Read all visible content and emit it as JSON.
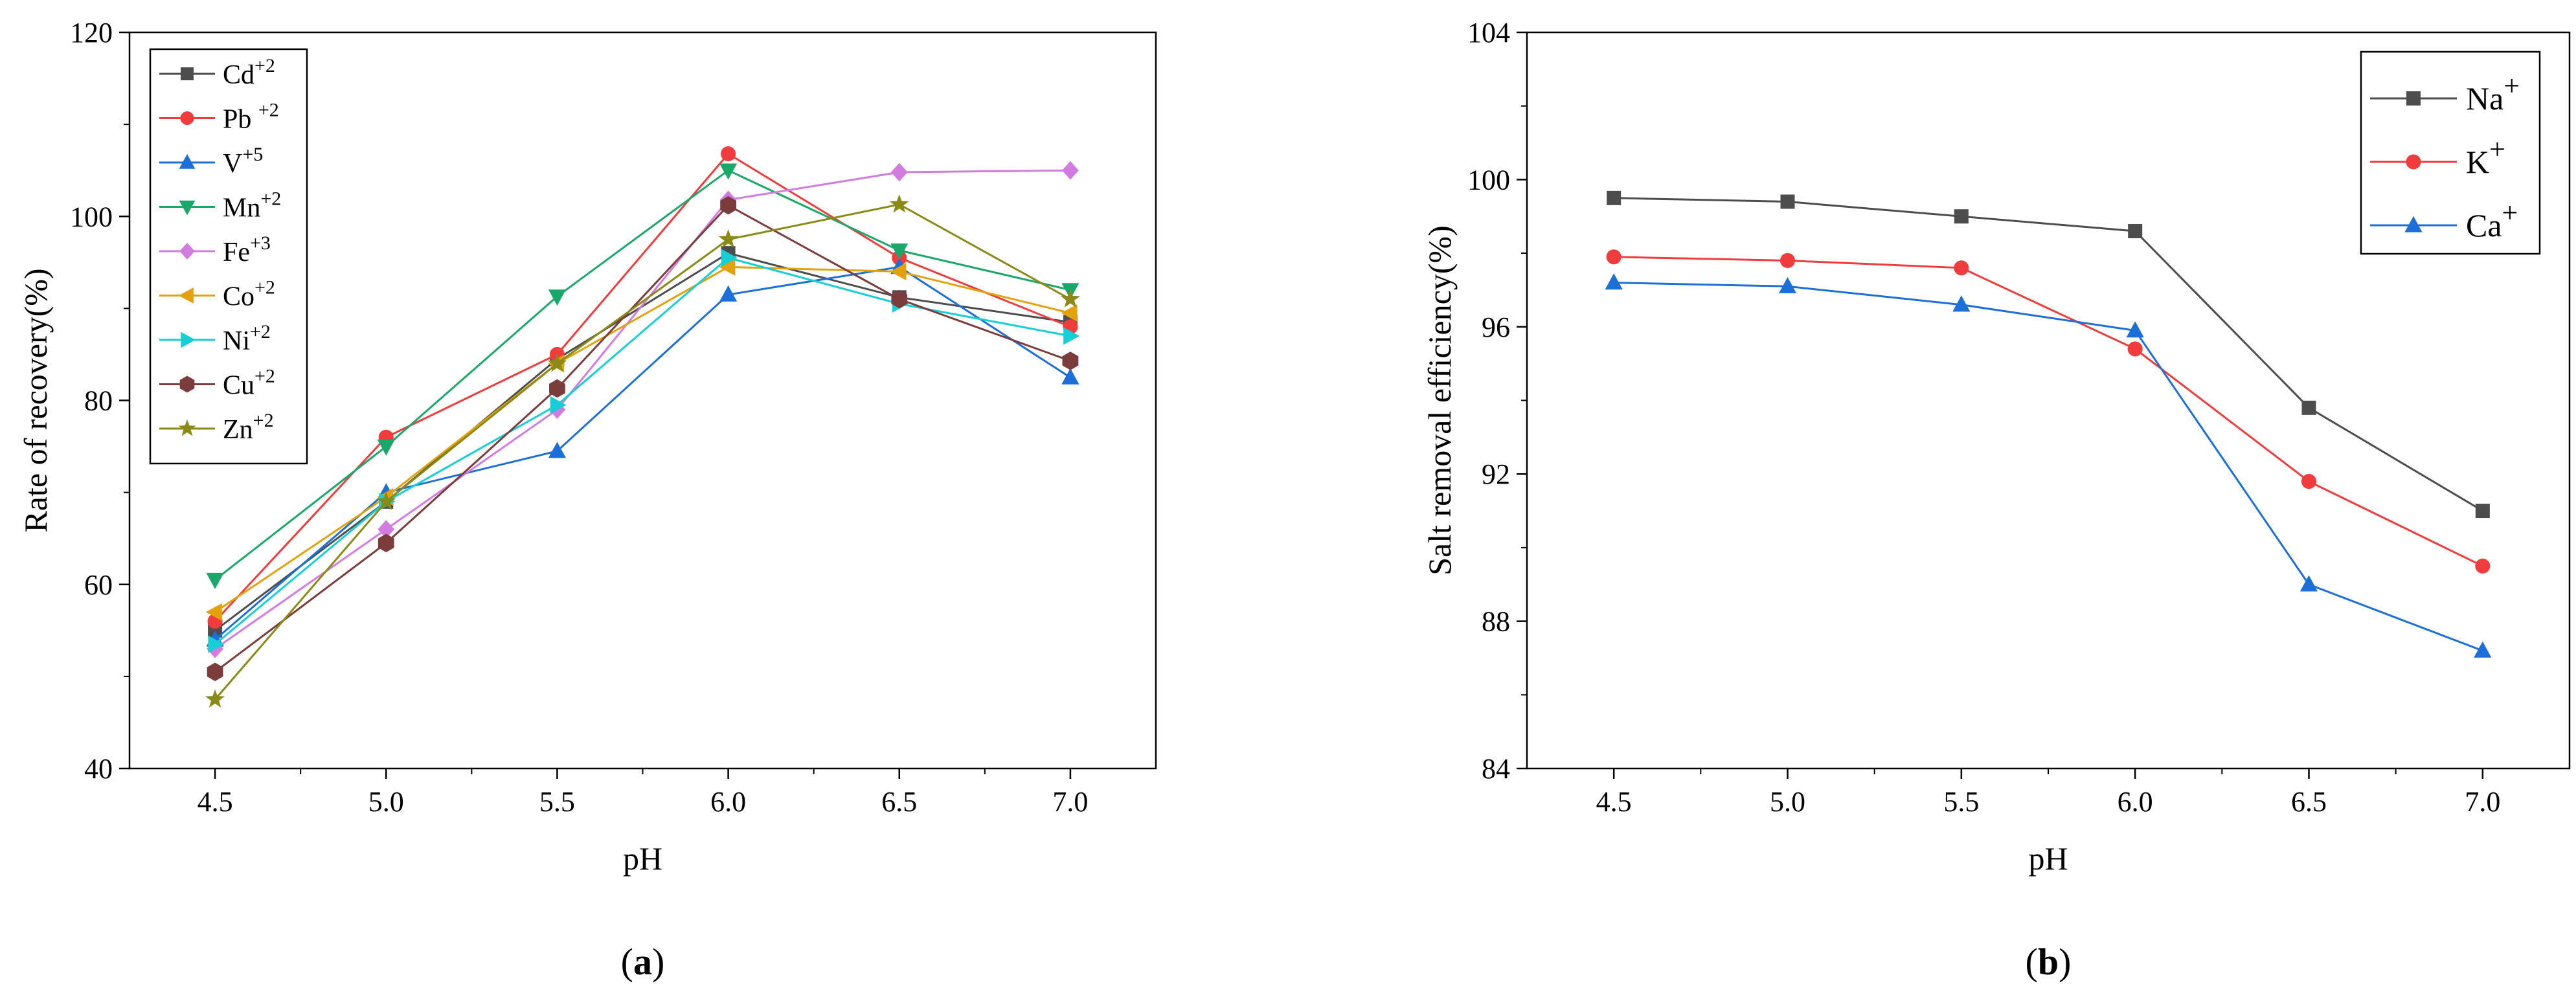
{
  "chart_data": [
    {
      "type": "line",
      "panel_label": "a",
      "xlabel": "pH",
      "ylabel": "Rate of recovery(%)",
      "x": [
        4.5,
        5.0,
        5.5,
        6.0,
        6.5,
        7.0
      ],
      "x_tick_labels": [
        "4.5",
        "5.0",
        "5.5",
        "6.0",
        "6.5",
        "7.0"
      ],
      "xlim": [
        4.25,
        7.25
      ],
      "ylim": [
        40,
        120
      ],
      "y_ticks": [
        40,
        60,
        80,
        100,
        120
      ],
      "y_tick_labels": [
        "40",
        "60",
        "80",
        "100",
        "120"
      ],
      "legend_position": "top-left",
      "series": [
        {
          "name": "Cd",
          "charge": "+2",
          "color": "#4d4d4d",
          "marker": "square",
          "values": [
            55.0,
            69.0,
            84.5,
            96.0,
            91.2,
            88.5
          ]
        },
        {
          "name": "Pb ",
          "charge": "+2",
          "color": "#f03c3c",
          "marker": "circle",
          "values": [
            56.0,
            76.0,
            85.0,
            106.8,
            95.5,
            88.0
          ]
        },
        {
          "name": "V",
          "charge": "+5",
          "color": "#1c6fd8",
          "marker": "triangle-up",
          "values": [
            54.0,
            70.0,
            74.5,
            91.5,
            94.5,
            82.5
          ]
        },
        {
          "name": "Mn",
          "charge": "+2",
          "color": "#1aa86a",
          "marker": "triangle-down",
          "values": [
            60.5,
            75.0,
            91.3,
            105.0,
            96.3,
            92.0
          ]
        },
        {
          "name": "Fe",
          "charge": "+3",
          "color": "#d27be0",
          "marker": "diamond",
          "values": [
            53.0,
            66.0,
            79.0,
            101.8,
            104.8,
            105.0
          ]
        },
        {
          "name": "Co",
          "charge": "+2",
          "color": "#e3a20b",
          "marker": "triangle-left",
          "values": [
            57.0,
            69.5,
            84.0,
            94.5,
            94.0,
            89.5
          ]
        },
        {
          "name": "Ni",
          "charge": "+2",
          "color": "#16cfd6",
          "marker": "triangle-right",
          "values": [
            53.5,
            69.0,
            79.5,
            95.5,
            90.5,
            87.0
          ]
        },
        {
          "name": "Cu",
          "charge": "+2",
          "color": "#7b3c3c",
          "marker": "hexagon",
          "values": [
            50.5,
            64.5,
            81.3,
            101.2,
            91.0,
            84.3
          ]
        },
        {
          "name": "Zn",
          "charge": "+2",
          "color": "#8a8a16",
          "marker": "star",
          "values": [
            47.5,
            69.0,
            84.0,
            97.5,
            101.3,
            91.0
          ]
        }
      ]
    },
    {
      "type": "line",
      "panel_label": "b",
      "xlabel": "pH",
      "ylabel": "Salt removal efficiency(%)",
      "x": [
        4.5,
        5.0,
        5.5,
        6.0,
        6.5,
        7.0
      ],
      "x_tick_labels": [
        "4.5",
        "5.0",
        "5.5",
        "6.0",
        "6.5",
        "7.0"
      ],
      "xlim": [
        4.25,
        7.25
      ],
      "ylim": [
        84,
        104
      ],
      "y_ticks": [
        84,
        88,
        92,
        96,
        100,
        104
      ],
      "y_tick_labels": [
        "84",
        "88",
        "92",
        "96",
        "100",
        "104"
      ],
      "legend_position": "top-right",
      "series": [
        {
          "name": "Na",
          "charge": "+",
          "color": "#4d4d4d",
          "marker": "square",
          "values": [
            99.5,
            99.4,
            99.0,
            98.6,
            93.8,
            91.0
          ]
        },
        {
          "name": "K",
          "charge": "+",
          "color": "#f03c3c",
          "marker": "circle",
          "values": [
            97.9,
            97.8,
            97.6,
            95.4,
            91.8,
            89.5
          ]
        },
        {
          "name": "Ca",
          "charge": "+",
          "color": "#1c6fd8",
          "marker": "triangle-up",
          "values": [
            97.2,
            97.1,
            96.6,
            95.9,
            89.0,
            87.2
          ]
        }
      ]
    }
  ]
}
